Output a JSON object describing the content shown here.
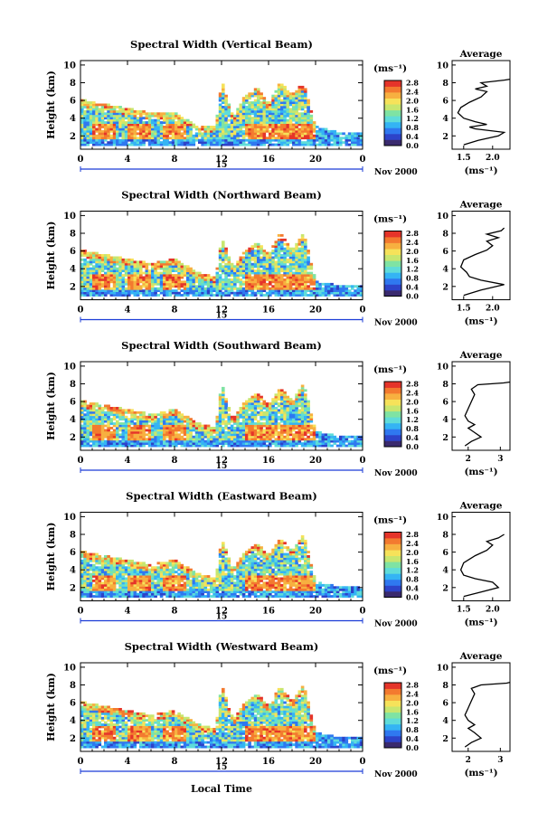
{
  "figure": {
    "xlabel": "Local Time",
    "date_label": "Nov 2000",
    "day_label": "15",
    "x_ticks": [
      "0",
      "4",
      "8",
      "12",
      "16",
      "20",
      "0"
    ],
    "y_ticks": [
      "2",
      "4",
      "6",
      "8",
      "10"
    ],
    "ylabel": "Height (km)",
    "unit": "(ms⁻¹)",
    "avg_title": "Average",
    "colorbar_ticks": [
      "0.0",
      "0.4",
      "0.8",
      "1.2",
      "1.6",
      "2.0",
      "2.4",
      "2.8"
    ],
    "colormap": [
      "#3a2a6e",
      "#2d43c9",
      "#2f78f0",
      "#34b4f4",
      "#5fdcd9",
      "#7fe3a3",
      "#c8e66f",
      "#f6e25a",
      "#f7b040",
      "#f37a2f",
      "#e5342a"
    ]
  },
  "chart_data": [
    {
      "type": "heatmap",
      "title": "Spectral Width (Vertical Beam)",
      "x": {
        "label": "Local Time",
        "range": [
          0,
          24
        ],
        "unit": "h"
      },
      "y": {
        "label": "Height (km)",
        "range": [
          0.5,
          10.5
        ]
      },
      "colorbar": {
        "label": "(ms⁻¹)",
        "range": [
          0,
          2.9
        ],
        "ticks": [
          0.0,
          0.4,
          0.8,
          1.2,
          1.6,
          2.0,
          2.4,
          2.8
        ]
      },
      "echo_top_km": [
        [
          0,
          6.0
        ],
        [
          2,
          5.5
        ],
        [
          4,
          5.0
        ],
        [
          6,
          4.5
        ],
        [
          8,
          4.5
        ],
        [
          10,
          3.0
        ],
        [
          11.5,
          3.0
        ],
        [
          12,
          8.2
        ],
        [
          13,
          4.0
        ],
        [
          14,
          6.5
        ],
        [
          15,
          7.5
        ],
        [
          16,
          5.5
        ],
        [
          17,
          8.0
        ],
        [
          18,
          6.5
        ],
        [
          19,
          8.0
        ],
        [
          20,
          3.0
        ],
        [
          22,
          2.3
        ],
        [
          24,
          2.3
        ]
      ],
      "average": {
        "xlabel": "(ms⁻¹)",
        "x_ticks": [
          "1.5",
          "2.0"
        ],
        "xlim": [
          1.3,
          2.3
        ],
        "points": [
          [
            1.5,
            1.0
          ],
          [
            1.75,
            1.5
          ],
          [
            2.1,
            2.0
          ],
          [
            2.2,
            2.4
          ],
          [
            1.7,
            2.8
          ],
          [
            1.6,
            3.0
          ],
          [
            1.9,
            3.3
          ],
          [
            1.7,
            3.6
          ],
          [
            1.5,
            4.0
          ],
          [
            1.4,
            4.6
          ],
          [
            1.45,
            5.2
          ],
          [
            1.6,
            5.8
          ],
          [
            1.8,
            6.4
          ],
          [
            1.9,
            7.0
          ],
          [
            1.7,
            7.3
          ],
          [
            1.9,
            7.6
          ],
          [
            1.8,
            8.0
          ],
          [
            2.2,
            8.3
          ],
          [
            2.3,
            8.4
          ]
        ]
      }
    },
    {
      "type": "heatmap",
      "title": "Spectral Width (Northward Beam)",
      "x": {
        "label": "Local Time",
        "range": [
          0,
          24
        ],
        "unit": "h"
      },
      "y": {
        "label": "Height (km)",
        "range": [
          0.5,
          10.5
        ]
      },
      "colorbar": {
        "label": "(ms⁻¹)",
        "range": [
          0,
          2.9
        ],
        "ticks": [
          0.0,
          0.4,
          0.8,
          1.2,
          1.6,
          2.0,
          2.4,
          2.8
        ]
      },
      "echo_top_km": [
        [
          0,
          6.0
        ],
        [
          2,
          5.5
        ],
        [
          4,
          5.0
        ],
        [
          6,
          4.5
        ],
        [
          8,
          5.0
        ],
        [
          10,
          3.5
        ],
        [
          11.5,
          3.0
        ],
        [
          12,
          7.5
        ],
        [
          13,
          4.0
        ],
        [
          14,
          6.0
        ],
        [
          15,
          7.0
        ],
        [
          16,
          5.5
        ],
        [
          17,
          8.0
        ],
        [
          18,
          6.0
        ],
        [
          19,
          8.0
        ],
        [
          20,
          2.5
        ],
        [
          22,
          2.0
        ],
        [
          24,
          2.0
        ]
      ],
      "average": {
        "xlabel": "(ms⁻¹)",
        "x_ticks": [
          "1.5",
          "2.0"
        ],
        "xlim": [
          1.3,
          2.3
        ],
        "points": [
          [
            1.5,
            1.0
          ],
          [
            1.8,
            1.6
          ],
          [
            2.2,
            2.2
          ],
          [
            1.8,
            2.7
          ],
          [
            1.6,
            3.1
          ],
          [
            1.55,
            3.6
          ],
          [
            1.45,
            4.2
          ],
          [
            1.5,
            5.0
          ],
          [
            1.7,
            5.6
          ],
          [
            1.9,
            6.1
          ],
          [
            2.0,
            6.6
          ],
          [
            1.9,
            7.1
          ],
          [
            2.1,
            7.5
          ],
          [
            1.9,
            7.9
          ],
          [
            2.15,
            8.3
          ],
          [
            2.2,
            8.6
          ]
        ]
      }
    },
    {
      "type": "heatmap",
      "title": "Spectral Width (Southward Beam)",
      "x": {
        "label": "Local Time",
        "range": [
          0,
          24
        ],
        "unit": "h"
      },
      "y": {
        "label": "Height (km)",
        "range": [
          0.5,
          10.5
        ]
      },
      "colorbar": {
        "label": "(ms⁻¹)",
        "range": [
          0,
          2.9
        ],
        "ticks": [
          0.0,
          0.4,
          0.8,
          1.2,
          1.6,
          2.0,
          2.4,
          2.8
        ]
      },
      "echo_top_km": [
        [
          0,
          6.0
        ],
        [
          2,
          5.5
        ],
        [
          4,
          5.0
        ],
        [
          6,
          4.5
        ],
        [
          8,
          5.0
        ],
        [
          10,
          3.5
        ],
        [
          11.5,
          3.0
        ],
        [
          12,
          8.0
        ],
        [
          13,
          4.0
        ],
        [
          14,
          6.0
        ],
        [
          15,
          7.0
        ],
        [
          16,
          5.5
        ],
        [
          17,
          7.5
        ],
        [
          18,
          6.0
        ],
        [
          19,
          8.0
        ],
        [
          20,
          2.5
        ],
        [
          22,
          2.0
        ],
        [
          24,
          2.0
        ]
      ],
      "average": {
        "xlabel": "(ms⁻¹)",
        "x_ticks": [
          "2",
          "3"
        ],
        "xlim": [
          1.5,
          3.3
        ],
        "points": [
          [
            1.9,
            1.0
          ],
          [
            2.1,
            1.5
          ],
          [
            2.4,
            2.0
          ],
          [
            2.2,
            2.5
          ],
          [
            2.0,
            3.0
          ],
          [
            2.2,
            3.4
          ],
          [
            2.0,
            3.8
          ],
          [
            1.9,
            4.4
          ],
          [
            2.0,
            5.2
          ],
          [
            2.1,
            6.0
          ],
          [
            2.2,
            6.8
          ],
          [
            2.1,
            7.4
          ],
          [
            2.3,
            7.9
          ],
          [
            3.1,
            8.1
          ],
          [
            3.3,
            8.2
          ]
        ]
      }
    },
    {
      "type": "heatmap",
      "title": "Spectral Width (Eastward Beam)",
      "x": {
        "label": "Local Time",
        "range": [
          0,
          24
        ],
        "unit": "h"
      },
      "y": {
        "label": "Height (km)",
        "range": [
          0.5,
          10.5
        ]
      },
      "colorbar": {
        "label": "(ms⁻¹)",
        "range": [
          0,
          2.9
        ],
        "ticks": [
          0.0,
          0.4,
          0.8,
          1.2,
          1.6,
          2.0,
          2.4,
          2.8
        ]
      },
      "echo_top_km": [
        [
          0,
          6.0
        ],
        [
          2,
          5.5
        ],
        [
          4,
          5.0
        ],
        [
          6,
          4.5
        ],
        [
          8,
          5.0
        ],
        [
          10,
          3.5
        ],
        [
          11.5,
          3.0
        ],
        [
          12,
          7.5
        ],
        [
          13,
          4.0
        ],
        [
          14,
          6.0
        ],
        [
          15,
          7.0
        ],
        [
          16,
          5.5
        ],
        [
          17,
          7.5
        ],
        [
          18,
          6.0
        ],
        [
          19,
          8.0
        ],
        [
          20,
          2.5
        ],
        [
          22,
          2.0
        ],
        [
          24,
          2.0
        ]
      ],
      "average": {
        "xlabel": "(ms⁻¹)",
        "x_ticks": [
          "1.5",
          "2.0"
        ],
        "xlim": [
          1.3,
          2.3
        ],
        "points": [
          [
            1.5,
            1.0
          ],
          [
            1.8,
            1.5
          ],
          [
            2.1,
            2.0
          ],
          [
            2.0,
            2.6
          ],
          [
            1.7,
            3.0
          ],
          [
            1.5,
            3.4
          ],
          [
            1.45,
            4.0
          ],
          [
            1.5,
            4.8
          ],
          [
            1.7,
            5.6
          ],
          [
            1.9,
            6.2
          ],
          [
            2.0,
            6.8
          ],
          [
            1.9,
            7.2
          ],
          [
            2.1,
            7.6
          ],
          [
            2.2,
            8.0
          ]
        ]
      }
    },
    {
      "type": "heatmap",
      "title": "Spectral Width (Westward Beam)",
      "x": {
        "label": "Local Time",
        "range": [
          0,
          24
        ],
        "unit": "h"
      },
      "y": {
        "label": "Height (km)",
        "range": [
          0.5,
          10.5
        ]
      },
      "colorbar": {
        "label": "(ms⁻¹)",
        "range": [
          0,
          2.9
        ],
        "ticks": [
          0.0,
          0.4,
          0.8,
          1.2,
          1.6,
          2.0,
          2.4,
          2.8
        ]
      },
      "echo_top_km": [
        [
          0,
          6.0
        ],
        [
          2,
          5.5
        ],
        [
          4,
          5.0
        ],
        [
          6,
          4.5
        ],
        [
          8,
          5.0
        ],
        [
          10,
          3.5
        ],
        [
          11.5,
          3.0
        ],
        [
          12,
          8.2
        ],
        [
          13,
          4.0
        ],
        [
          14,
          6.0
        ],
        [
          15,
          7.0
        ],
        [
          16,
          5.5
        ],
        [
          17,
          7.8
        ],
        [
          18,
          6.0
        ],
        [
          19,
          8.0
        ],
        [
          20,
          2.5
        ],
        [
          22,
          2.0
        ],
        [
          24,
          2.0
        ]
      ],
      "average": {
        "xlabel": "(ms⁻¹)",
        "x_ticks": [
          "2",
          "3"
        ],
        "xlim": [
          1.5,
          3.3
        ],
        "points": [
          [
            1.9,
            1.0
          ],
          [
            2.1,
            1.5
          ],
          [
            2.4,
            2.0
          ],
          [
            2.2,
            2.6
          ],
          [
            2.0,
            3.1
          ],
          [
            2.2,
            3.5
          ],
          [
            2.0,
            4.0
          ],
          [
            1.9,
            4.6
          ],
          [
            2.0,
            5.4
          ],
          [
            2.1,
            6.2
          ],
          [
            2.2,
            7.0
          ],
          [
            2.1,
            7.6
          ],
          [
            2.4,
            8.0
          ],
          [
            3.2,
            8.2
          ],
          [
            3.3,
            8.3
          ]
        ]
      }
    }
  ]
}
